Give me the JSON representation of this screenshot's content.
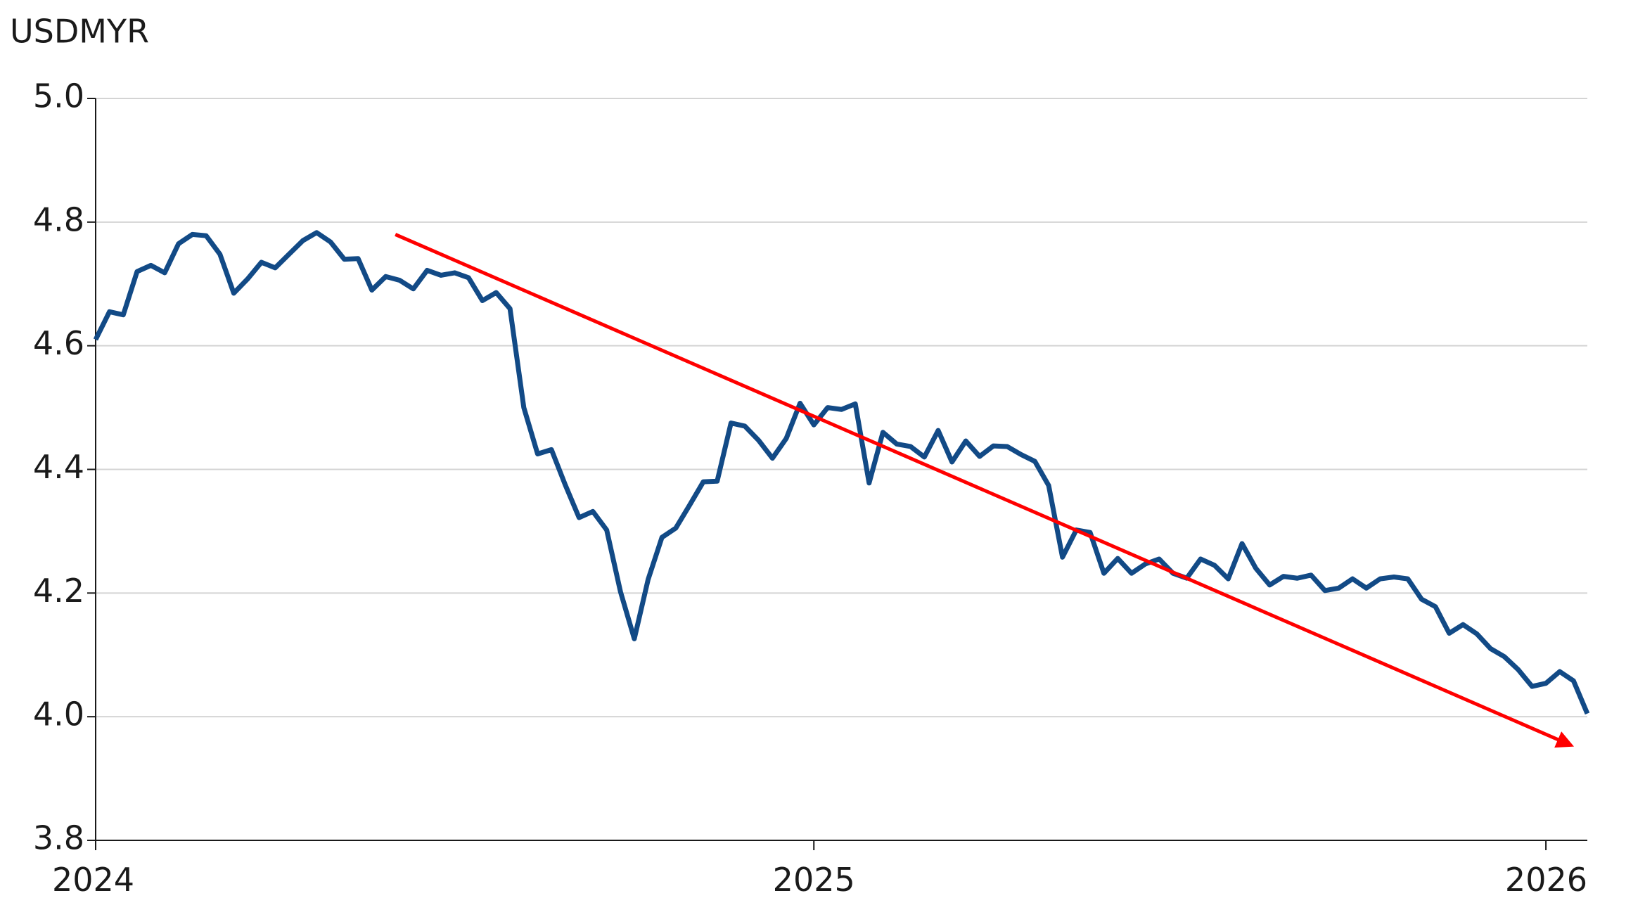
{
  "chart_data": {
    "type": "line",
    "title": "USDMYR",
    "categories": [
      "2024",
      null,
      null,
      null,
      null,
      null,
      null,
      null,
      null,
      null,
      null,
      null,
      null,
      null,
      null,
      null,
      null,
      null,
      null,
      null,
      null,
      null,
      null,
      null,
      null,
      null,
      null,
      null,
      null,
      null,
      null,
      null,
      null,
      null,
      null,
      null,
      null,
      null,
      null,
      null,
      null,
      null,
      null,
      null,
      null,
      null,
      null,
      null,
      null,
      null,
      null,
      null,
      "2025",
      null,
      null,
      null,
      null,
      null,
      null,
      null,
      null,
      null,
      null,
      null,
      null,
      null,
      null,
      null,
      null,
      null,
      null,
      null,
      null,
      null,
      null,
      null,
      null,
      null,
      null,
      null,
      null,
      null,
      null,
      null,
      null,
      null,
      null,
      null,
      null,
      null,
      null,
      null,
      null,
      null,
      null,
      null,
      null,
      null,
      null,
      null,
      null,
      null,
      null,
      null,
      null,
      "2026",
      null,
      null,
      null
    ],
    "series": [
      {
        "name": "USDMYR",
        "color": "#124a86",
        "values": [
          4.61,
          4.655,
          4.65,
          4.72,
          4.73,
          4.718,
          4.765,
          4.78,
          4.778,
          4.748,
          4.685,
          4.708,
          4.735,
          4.726,
          4.748,
          4.77,
          4.783,
          4.768,
          4.74,
          4.741,
          4.69,
          4.712,
          4.706,
          4.692,
          4.722,
          4.714,
          4.718,
          4.71,
          4.673,
          4.686,
          4.66,
          4.5,
          4.425,
          4.432,
          4.375,
          4.322,
          4.332,
          4.302,
          4.202,
          4.126,
          4.222,
          4.29,
          4.305,
          4.342,
          4.38,
          4.381,
          4.475,
          4.47,
          4.447,
          4.418,
          4.45,
          4.507,
          4.472,
          4.5,
          4.497,
          4.506,
          4.378,
          4.46,
          4.441,
          4.437,
          4.42,
          4.463,
          4.412,
          4.446,
          4.421,
          4.438,
          4.437,
          4.424,
          4.413,
          4.374,
          4.258,
          4.302,
          4.298,
          4.232,
          4.256,
          4.232,
          4.247,
          4.255,
          4.232,
          4.224,
          4.255,
          4.245,
          4.223,
          4.28,
          4.24,
          4.213,
          4.227,
          4.224,
          4.229,
          4.204,
          4.208,
          4.223,
          4.208,
          4.223,
          4.226,
          4.223,
          4.19,
          4.178,
          4.135,
          4.149,
          4.134,
          4.11,
          4.097,
          4.076,
          4.049,
          4.054,
          4.073,
          4.058,
          4.005
        ]
      }
    ],
    "trend_line": {
      "x": [
        21.7,
        106.8
      ],
      "y": [
        4.78,
        3.954
      ],
      "color": "#ff0000"
    },
    "ylim": [
      3.8,
      5.0
    ],
    "yticks": [
      {
        "value": 3.8,
        "label": "3.8"
      },
      {
        "value": 4.0,
        "label": "4.0"
      },
      {
        "value": 4.2,
        "label": "4.2"
      },
      {
        "value": 4.4,
        "label": "4.4"
      },
      {
        "value": 4.6,
        "label": "4.6"
      },
      {
        "value": 4.8,
        "label": "4.8"
      },
      {
        "value": 5.0,
        "label": "5.0"
      }
    ],
    "grid": true
  }
}
